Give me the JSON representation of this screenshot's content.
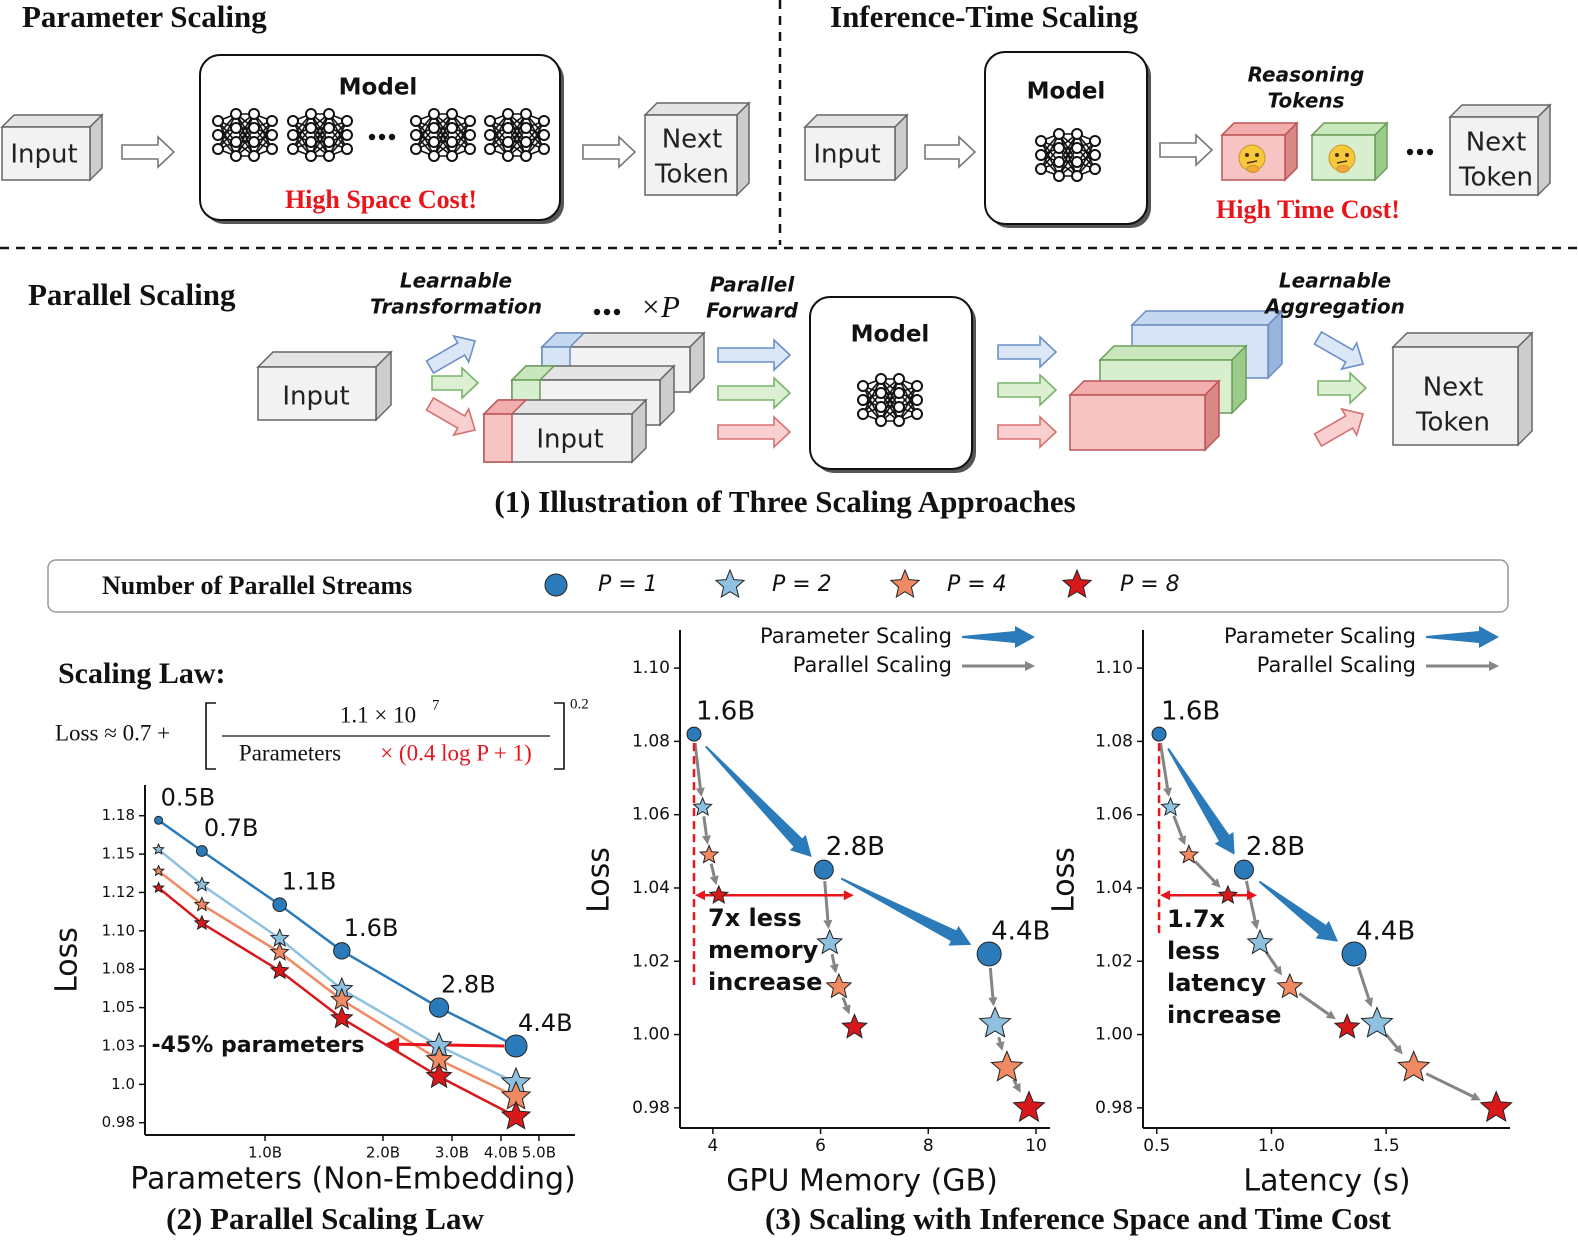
{
  "diagram": {
    "parameter_scaling": {
      "title": "Parameter Scaling",
      "input": "Input",
      "model": "Model",
      "cost": "High Space Cost!",
      "output": [
        "Next",
        "Token"
      ]
    },
    "inference_time_scaling": {
      "title": "Inference-Time Scaling",
      "input": "Input",
      "model": "Model",
      "tokens_label": [
        "Reasoning",
        "Tokens"
      ],
      "cost": "High Time Cost!",
      "output": [
        "Next",
        "Token"
      ]
    },
    "parallel_scaling": {
      "title": "Parallel Scaling",
      "input": "Input",
      "transformation": [
        "Learnable",
        "Transformation"
      ],
      "copies": "×P",
      "stream_input": "Input",
      "forward": [
        "Parallel",
        "Forward"
      ],
      "model": "Model",
      "aggregation": [
        "Learnable",
        "Aggregation"
      ],
      "output": [
        "Next",
        "Token"
      ]
    },
    "caption": "(1) Illustration of Three Scaling Approaches"
  },
  "legend_title": "Number of Parallel Streams",
  "formula": {
    "title": "Scaling Law:",
    "lhs": "Loss ≈ 0.7 +",
    "numerator": "1.1 × 10",
    "numerator_exponent": "7",
    "denominator": "Parameters",
    "denominator_factor": "× (0.4 log P + 1)",
    "exponent": "0.2"
  },
  "captions": [
    "(2) Parallel Scaling Law",
    "(3) Scaling with Inference Space and Time Cost"
  ],
  "chart_data": [
    {
      "type": "line",
      "xlabel": "Parameters (Non-Embedding)",
      "ylabel": "Loss",
      "x_scale": "log",
      "xlim": [
        0.494,
        6.18
      ],
      "xticks": [
        {
          "value": 1,
          "label": "1.0B"
        },
        {
          "value": 2,
          "label": "2.0B"
        },
        {
          "value": 3,
          "label": "3.0B"
        },
        {
          "value": 4,
          "label": "4.0B"
        },
        {
          "value": 5,
          "label": "5.0B"
        }
      ],
      "ylim": [
        0.967,
        1.195
      ],
      "yticks": [
        {
          "value": 0.975,
          "label": "0.98"
        },
        {
          "value": 1,
          "label": "1.0"
        },
        {
          "value": 1.025,
          "label": "1.03"
        },
        1.05,
        {
          "value": 1.075,
          "label": "1.08"
        },
        {
          "value": 1.1,
          "label": "1.10"
        },
        {
          "value": 1.125,
          "label": "1.12"
        },
        1.15,
        {
          "value": 1.175,
          "label": "1.18"
        }
      ],
      "x": [
        0.535,
        0.69,
        1.09,
        1.57,
        2.78,
        4.37
      ],
      "point_labels": [
        "0.5B",
        "0.7B",
        "1.1B",
        "1.6B",
        "2.8B",
        "4.4B"
      ],
      "series": [
        {
          "name": "P = 1",
          "color": "#2b7bba",
          "marker": "circle",
          "values": [
            1.172,
            1.152,
            1.117,
            1.087,
            1.05,
            1.025
          ]
        },
        {
          "name": "P = 2",
          "color": "#8ec1e0",
          "marker": "star",
          "values": [
            1.153,
            1.13,
            1.095,
            1.062,
            1.025,
            1.001
          ]
        },
        {
          "name": "P = 4",
          "color": "#ef8a62",
          "marker": "star",
          "values": [
            1.139,
            1.117,
            1.086,
            1.055,
            1.016,
            0.992
          ]
        },
        {
          "name": "P = 8",
          "color": "#d7191c",
          "marker": "star",
          "values": [
            1.128,
            1.105,
            1.074,
            1.043,
            1.005,
            0.979
          ]
        }
      ],
      "annotation": "-45% parameters",
      "annotation_color": "#e8151b"
    },
    {
      "type": "scatter",
      "xlabel": "GPU Memory (GB)",
      "ylabel": "Loss",
      "xlim": [
        3.39,
        10.26
      ],
      "xticks": [
        4,
        6,
        8,
        10
      ],
      "ylim": [
        0.9745,
        1.1104
      ],
      "yticks": [
        0.98,
        {
          "value": 1,
          "label": "1.00"
        },
        1.02,
        1.04,
        1.06,
        1.08,
        {
          "value": 1.1,
          "label": "1.10"
        }
      ],
      "point_labels": [
        "1.6B",
        "2.8B",
        "4.4B"
      ],
      "arrow_legend": [
        {
          "name": "Parameter Scaling",
          "color": "#2b7bba"
        },
        {
          "name": "Parallel Scaling",
          "color": "#858585"
        }
      ],
      "series": [
        {
          "color": "#2b7bba",
          "marker": "circle",
          "x": [
            3.65,
            6.06,
            9.13
          ],
          "values": [
            1.082,
            1.045,
            1.022
          ]
        },
        {
          "color": "#8ec1e0",
          "marker": "star",
          "x": [
            3.81,
            6.17,
            9.24
          ],
          "values": [
            1.062,
            1.025,
            1.003
          ]
        },
        {
          "color": "#ef8a62",
          "marker": "star",
          "x": [
            3.93,
            6.34,
            9.46
          ],
          "values": [
            1.049,
            1.013,
            0.991
          ]
        },
        {
          "color": "#d7191c",
          "marker": "star",
          "x": [
            4.11,
            6.63,
            9.87
          ],
          "values": [
            1.038,
            1.002,
            0.98
          ]
        }
      ],
      "annotation": [
        "7x less",
        "memory",
        "increase"
      ],
      "annotation_color": "#e8151b"
    },
    {
      "type": "scatter",
      "xlabel": "Latency (s)",
      "ylabel": "Loss",
      "xlim": [
        0.44,
        2.04
      ],
      "xticks": [
        0.5,
        {
          "value": 1,
          "label": "1.0"
        },
        1.5
      ],
      "ylim": [
        0.9745,
        1.1104
      ],
      "yticks": [
        0.98,
        {
          "value": 1,
          "label": "1.00"
        },
        1.02,
        1.04,
        1.06,
        1.08,
        {
          "value": 1.1,
          "label": "1.10"
        }
      ],
      "point_labels": [
        "1.6B",
        "2.8B",
        "4.4B"
      ],
      "arrow_legend": [
        {
          "name": "Parameter Scaling",
          "color": "#2b7bba"
        },
        {
          "name": "Parallel Scaling",
          "color": "#858585"
        }
      ],
      "series": [
        {
          "color": "#2b7bba",
          "marker": "circle",
          "x": [
            0.51,
            0.88,
            1.36
          ],
          "values": [
            1.082,
            1.045,
            1.022
          ]
        },
        {
          "color": "#8ec1e0",
          "marker": "star",
          "x": [
            0.56,
            0.95,
            1.46
          ],
          "values": [
            1.062,
            1.025,
            1.003
          ]
        },
        {
          "color": "#ef8a62",
          "marker": "star",
          "x": [
            0.64,
            1.08,
            1.62
          ],
          "values": [
            1.049,
            1.013,
            0.991
          ]
        },
        {
          "color": "#d7191c",
          "marker": "star",
          "x": [
            0.81,
            1.33,
            1.98
          ],
          "values": [
            1.038,
            1.002,
            0.98
          ]
        }
      ],
      "annotation": [
        "1.7x",
        "less",
        "latency",
        "increase"
      ],
      "annotation_color": "#e8151b"
    }
  ]
}
